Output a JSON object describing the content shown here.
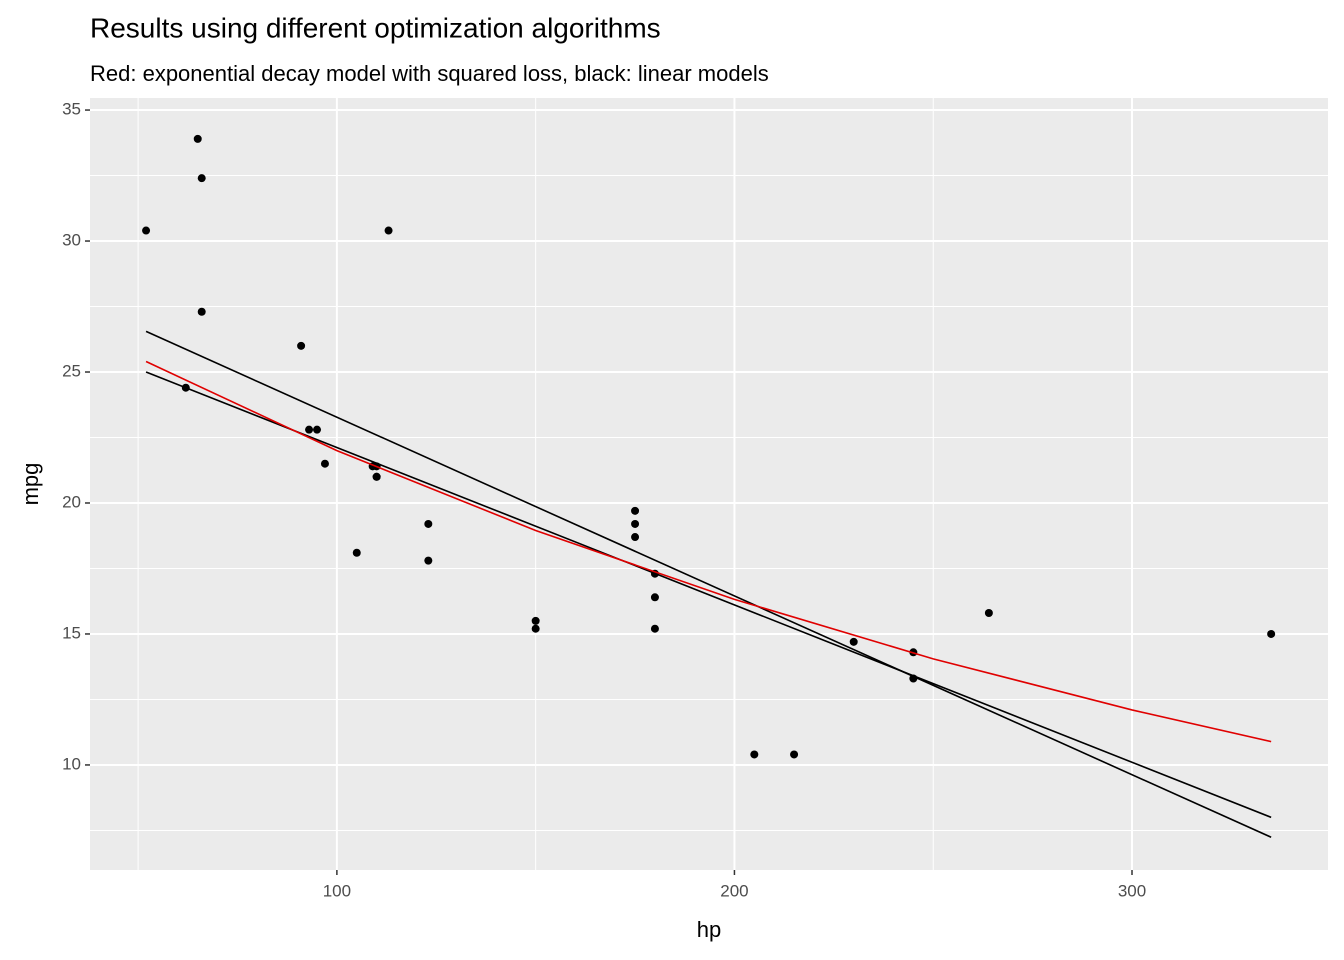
{
  "chart_data": {
    "type": "scatter",
    "title": "Results using different optimization algorithms",
    "subtitle": "Red: exponential decay model with squared loss, black: linear models",
    "x_label": "hp",
    "y_label": "mpg",
    "xlim": [
      37.9,
      349.3
    ],
    "ylim": [
      5.99,
      35.46
    ],
    "xticks": [
      100,
      200,
      300
    ],
    "yticks": [
      10,
      15,
      20,
      25,
      30,
      35
    ],
    "xminor": [
      50,
      150,
      250
    ],
    "yminor": [
      7.5,
      12.5,
      17.5,
      22.5,
      27.5,
      32.5
    ],
    "grid": true,
    "point_color": "#000000",
    "x": [
      110,
      110,
      93,
      110,
      175,
      105,
      245,
      62,
      95,
      123,
      123,
      180,
      180,
      180,
      205,
      215,
      230,
      66,
      52,
      65,
      97,
      150,
      150,
      245,
      175,
      66,
      91,
      113,
      264,
      175,
      335,
      109
    ],
    "y": [
      21,
      21,
      22.8,
      21.4,
      18.7,
      18.1,
      14.3,
      24.4,
      22.8,
      19.2,
      17.8,
      16.4,
      17.3,
      15.2,
      10.4,
      10.4,
      14.7,
      32.4,
      30.4,
      33.9,
      21.5,
      15.5,
      15.2,
      13.3,
      19.2,
      27.3,
      26,
      30.4,
      15.8,
      19.7,
      15,
      21.4
    ],
    "lines": [
      {
        "color": "#000000",
        "x": [
          52,
          335
        ],
        "values": [
          26.55,
          7.24
        ]
      },
      {
        "color": "#000000",
        "x": [
          52,
          335
        ],
        "values": [
          25.0,
          8.0
        ]
      },
      {
        "color": "#e00000",
        "x": [
          52,
          100,
          150,
          200,
          250,
          300,
          335
        ],
        "values": [
          25.4,
          22.0,
          18.95,
          16.32,
          14.05,
          12.1,
          10.89
        ]
      }
    ]
  }
}
